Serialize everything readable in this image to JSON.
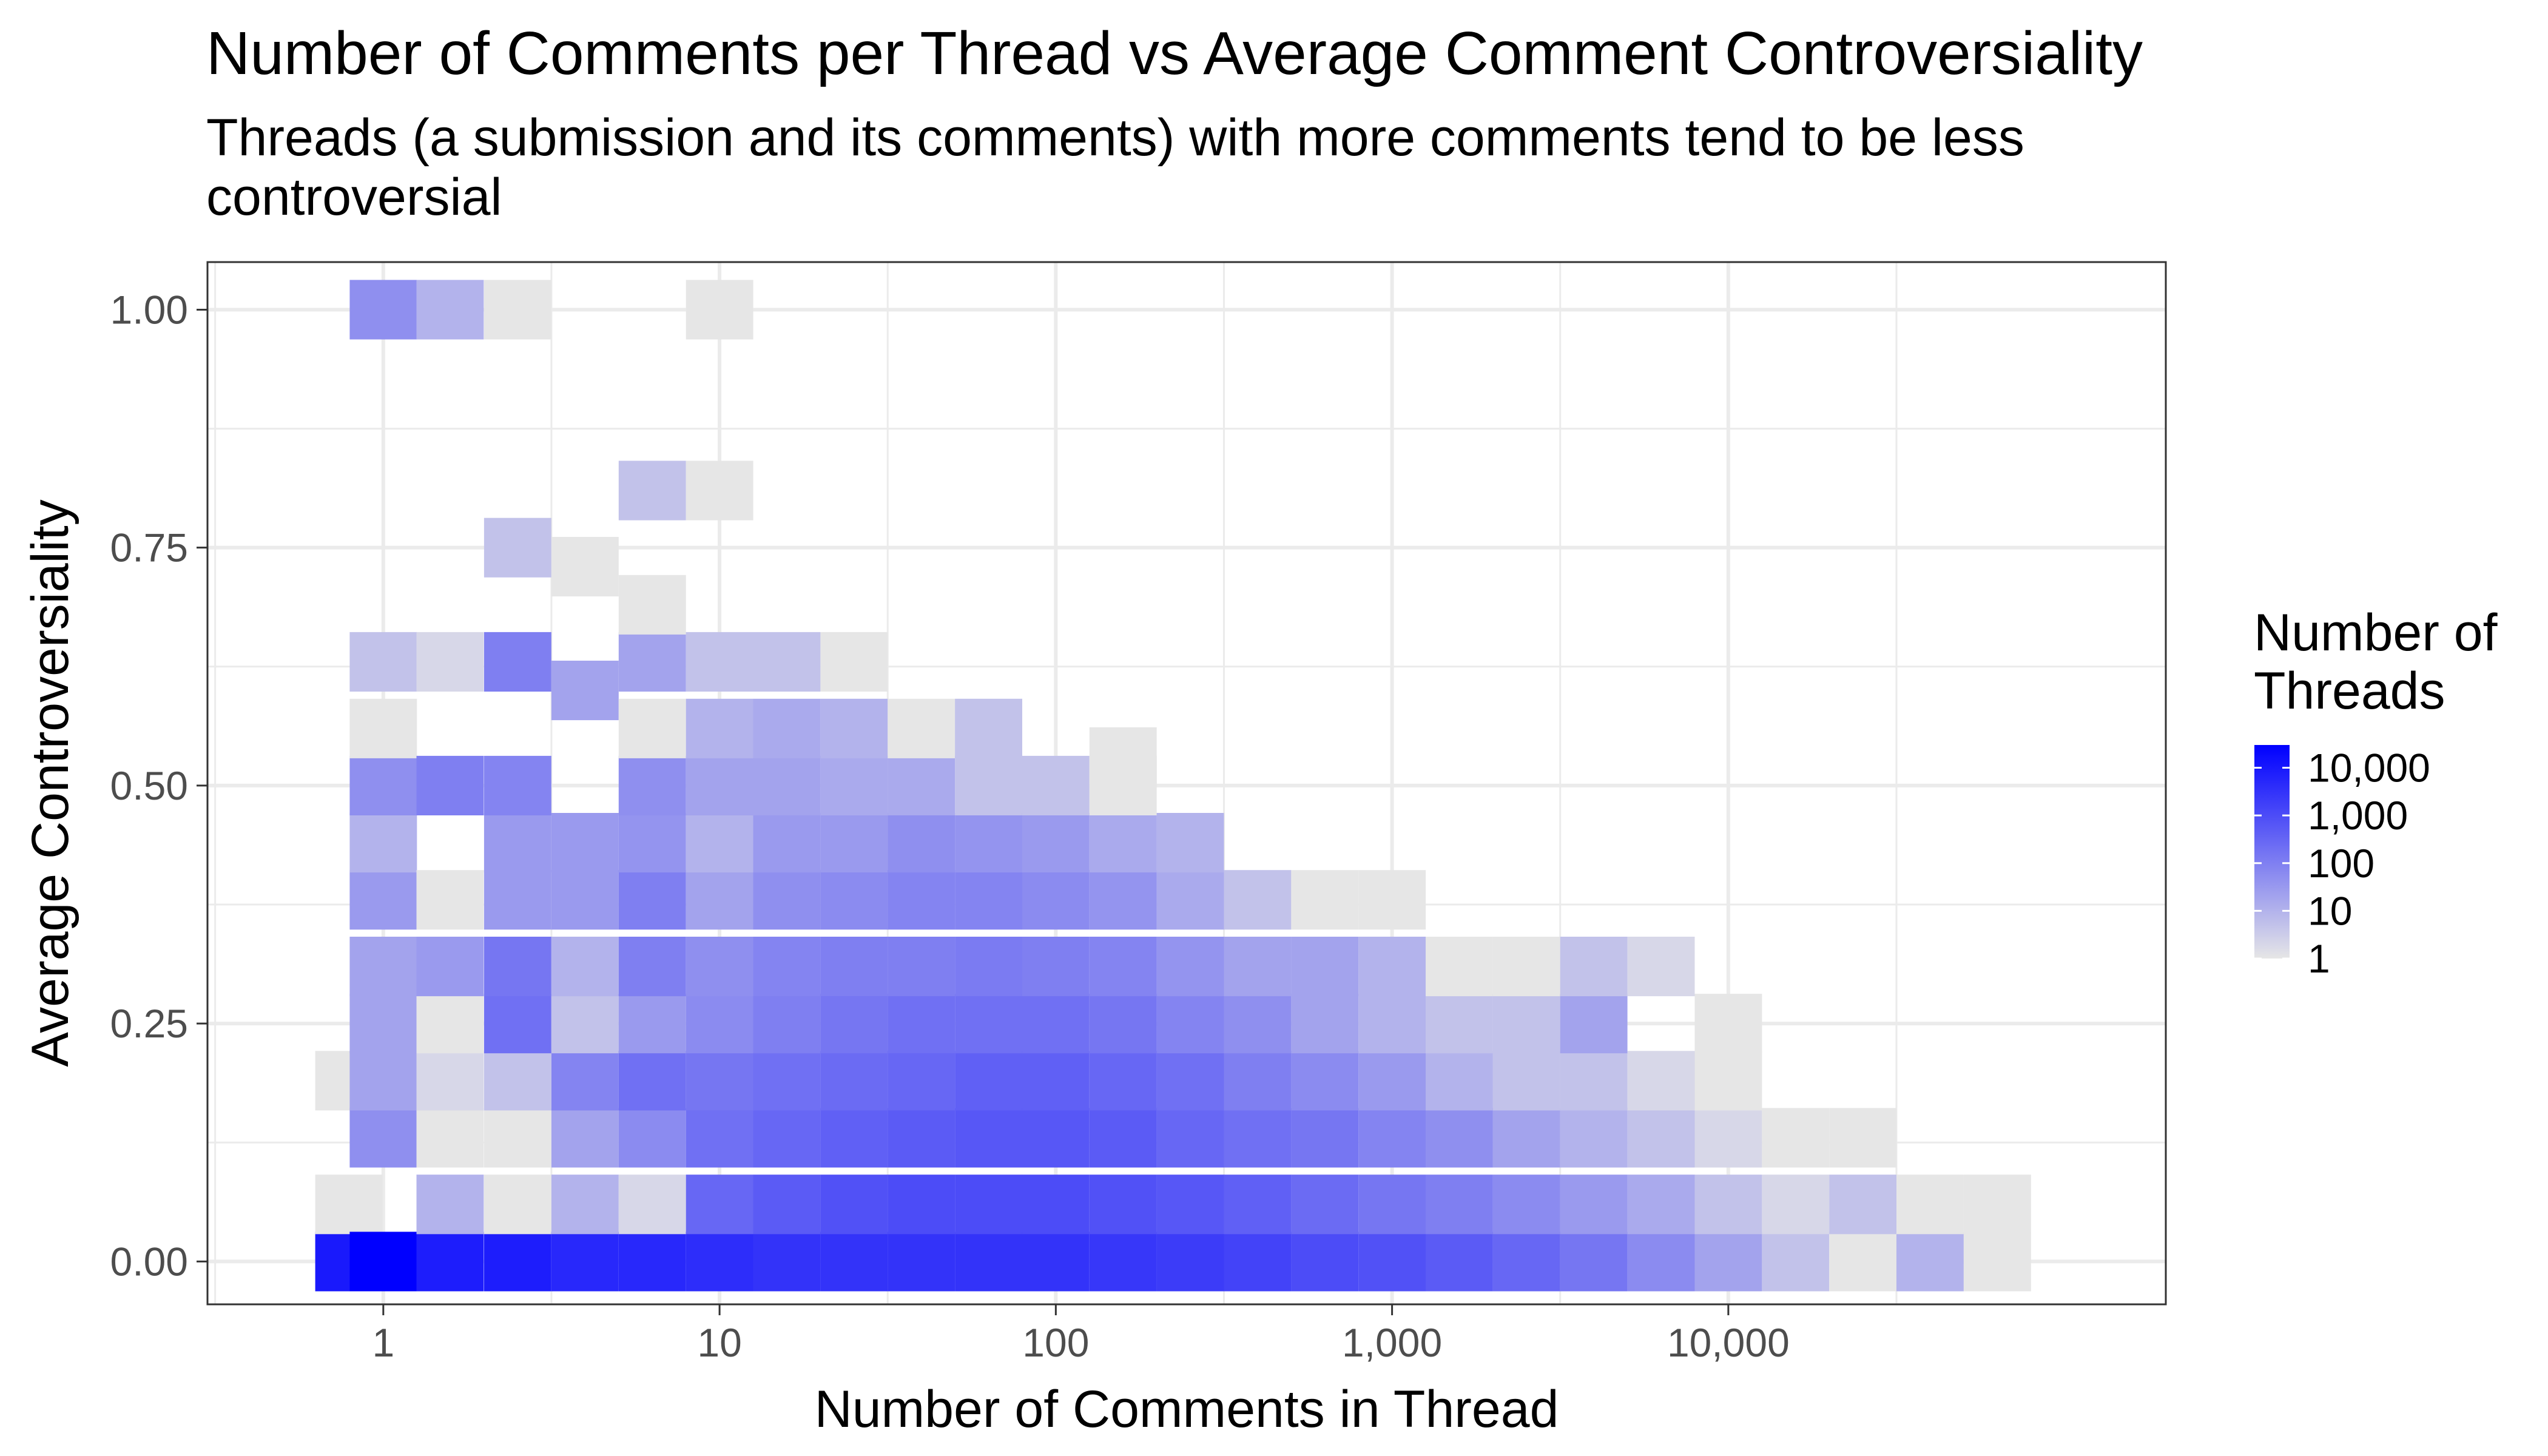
{
  "chart_data": {
    "type": "heatmap",
    "title": "Number of Comments per Thread vs Average Comment Controversiality",
    "subtitle_lines": [
      "Threads (a submission and its comments) with more comments tend to be less",
      "controversial"
    ],
    "xlabel": "Number of Comments in Thread",
    "ylabel": "Average Controversiality",
    "x_scale": "log10",
    "xlim": [
      0.3,
      200000
    ],
    "ylim": [
      -0.045,
      1.05
    ],
    "x_ticks": [
      1,
      10,
      100,
      1000,
      10000
    ],
    "x_tick_labels": [
      "1",
      "10",
      "100",
      "1,000",
      "10,000"
    ],
    "y_ticks": [
      0,
      0.25,
      0.5,
      0.75,
      1
    ],
    "y_tick_labels": [
      "0.00",
      "0.25",
      "0.50",
      "0.75",
      "1.00"
    ],
    "grid": true,
    "legend": {
      "title_lines": [
        "Number of",
        "Threads"
      ],
      "position": "right",
      "scale": "log10",
      "low_color": "#e6e6e6",
      "high_color": "#0000ff",
      "labels": [
        "10,000",
        "1,000",
        "100",
        "10",
        "1"
      ],
      "label_values": [
        10000,
        1000,
        100,
        10,
        1
      ],
      "max_count": 30000
    },
    "bin_width_log10": 0.2,
    "bin_height": 0.0625,
    "columns": [
      {
        "x_center": 0.79,
        "cells": [
          [
            0.0,
            10000
          ],
          [
            0.06,
            1
          ],
          [
            0.19,
            1
          ]
        ]
      },
      {
        "x_center": 1.0,
        "cells": [
          [
            0.0,
            30000
          ],
          [
            0.13,
            50
          ],
          [
            0.19,
            20
          ],
          [
            0.25,
            20
          ],
          [
            0.31,
            20
          ],
          [
            0.38,
            30
          ],
          [
            0.44,
            10
          ],
          [
            0.5,
            50
          ],
          [
            0.56,
            1
          ],
          [
            0.63,
            5
          ],
          [
            1.0,
            50
          ]
        ]
      },
      {
        "x_center": 1.58,
        "cells": [
          [
            0.0,
            8000
          ],
          [
            0.06,
            10
          ],
          [
            0.13,
            1
          ],
          [
            0.19,
            2
          ],
          [
            0.25,
            1
          ],
          [
            0.31,
            30
          ],
          [
            0.38,
            1
          ],
          [
            0.5,
            100
          ],
          [
            0.63,
            2
          ],
          [
            1.0,
            10
          ]
        ]
      },
      {
        "x_center": 2.51,
        "cells": [
          [
            0.0,
            8000
          ],
          [
            0.06,
            1
          ],
          [
            0.13,
            1
          ],
          [
            0.19,
            5
          ],
          [
            0.25,
            200
          ],
          [
            0.31,
            150
          ],
          [
            0.38,
            30
          ],
          [
            0.44,
            30
          ],
          [
            0.5,
            80
          ],
          [
            0.63,
            100
          ],
          [
            0.75,
            5
          ],
          [
            1.0,
            1
          ]
        ]
      },
      {
        "x_center": 3.98,
        "cells": [
          [
            0.0,
            5000
          ],
          [
            0.06,
            10
          ],
          [
            0.13,
            20
          ],
          [
            0.19,
            80
          ],
          [
            0.25,
            5
          ],
          [
            0.31,
            10
          ],
          [
            0.38,
            30
          ],
          [
            0.44,
            30
          ],
          [
            0.6,
            20
          ],
          [
            0.73,
            1
          ]
        ]
      },
      {
        "x_center": 6.31,
        "cells": [
          [
            0.0,
            5000
          ],
          [
            0.06,
            2
          ],
          [
            0.13,
            60
          ],
          [
            0.19,
            200
          ],
          [
            0.25,
            30
          ],
          [
            0.31,
            100
          ],
          [
            0.38,
            100
          ],
          [
            0.44,
            40
          ],
          [
            0.5,
            50
          ],
          [
            0.56,
            1
          ],
          [
            0.63,
            20
          ],
          [
            0.69,
            1
          ],
          [
            0.81,
            5
          ]
        ]
      },
      {
        "x_center": 10.0,
        "cells": [
          [
            0.0,
            4000
          ],
          [
            0.06,
            300
          ],
          [
            0.13,
            200
          ],
          [
            0.19,
            150
          ],
          [
            0.25,
            60
          ],
          [
            0.31,
            50
          ],
          [
            0.38,
            20
          ],
          [
            0.44,
            10
          ],
          [
            0.5,
            20
          ],
          [
            0.56,
            10
          ],
          [
            0.63,
            5
          ],
          [
            0.81,
            1
          ],
          [
            1.0,
            1
          ]
        ]
      },
      {
        "x_center": 15.85,
        "cells": [
          [
            0.0,
            3000
          ],
          [
            0.06,
            500
          ],
          [
            0.13,
            300
          ],
          [
            0.19,
            200
          ],
          [
            0.25,
            100
          ],
          [
            0.31,
            80
          ],
          [
            0.38,
            50
          ],
          [
            0.44,
            30
          ],
          [
            0.5,
            20
          ],
          [
            0.56,
            15
          ],
          [
            0.63,
            5
          ]
        ]
      },
      {
        "x_center": 25.12,
        "cells": [
          [
            0.0,
            3000
          ],
          [
            0.06,
            800
          ],
          [
            0.13,
            400
          ],
          [
            0.19,
            250
          ],
          [
            0.25,
            150
          ],
          [
            0.31,
            100
          ],
          [
            0.38,
            60
          ],
          [
            0.44,
            30
          ],
          [
            0.5,
            15
          ],
          [
            0.56,
            10
          ],
          [
            0.63,
            1
          ]
        ]
      },
      {
        "x_center": 39.81,
        "cells": [
          [
            0.0,
            3000
          ],
          [
            0.06,
            1000
          ],
          [
            0.13,
            500
          ],
          [
            0.19,
            300
          ],
          [
            0.25,
            200
          ],
          [
            0.31,
            100
          ],
          [
            0.38,
            80
          ],
          [
            0.44,
            50
          ],
          [
            0.5,
            15
          ],
          [
            0.56,
            1
          ]
        ]
      },
      {
        "x_center": 63.1,
        "cells": [
          [
            0.0,
            3000
          ],
          [
            0.06,
            1000
          ],
          [
            0.13,
            600
          ],
          [
            0.19,
            400
          ],
          [
            0.25,
            200
          ],
          [
            0.31,
            120
          ],
          [
            0.38,
            80
          ],
          [
            0.44,
            40
          ],
          [
            0.5,
            5
          ],
          [
            0.56,
            5
          ]
        ]
      },
      {
        "x_center": 100.0,
        "cells": [
          [
            0.0,
            3000
          ],
          [
            0.06,
            1000
          ],
          [
            0.13,
            600
          ],
          [
            0.19,
            400
          ],
          [
            0.25,
            200
          ],
          [
            0.31,
            100
          ],
          [
            0.38,
            60
          ],
          [
            0.44,
            30
          ],
          [
            0.5,
            5
          ]
        ]
      },
      {
        "x_center": 158.49,
        "cells": [
          [
            0.0,
            2500
          ],
          [
            0.06,
            800
          ],
          [
            0.13,
            500
          ],
          [
            0.19,
            300
          ],
          [
            0.25,
            150
          ],
          [
            0.31,
            80
          ],
          [
            0.38,
            40
          ],
          [
            0.44,
            15
          ],
          [
            0.5,
            1
          ],
          [
            0.53,
            1
          ]
        ]
      },
      {
        "x_center": 251.19,
        "cells": [
          [
            0.0,
            2000
          ],
          [
            0.06,
            600
          ],
          [
            0.13,
            300
          ],
          [
            0.19,
            200
          ],
          [
            0.25,
            80
          ],
          [
            0.31,
            40
          ],
          [
            0.38,
            15
          ],
          [
            0.44,
            10
          ]
        ]
      },
      {
        "x_center": 398.11,
        "cells": [
          [
            0.0,
            1500
          ],
          [
            0.06,
            400
          ],
          [
            0.13,
            200
          ],
          [
            0.19,
            100
          ],
          [
            0.25,
            50
          ],
          [
            0.31,
            20
          ],
          [
            0.38,
            5
          ]
        ]
      },
      {
        "x_center": 630.96,
        "cells": [
          [
            0.0,
            1000
          ],
          [
            0.06,
            250
          ],
          [
            0.13,
            150
          ],
          [
            0.19,
            60
          ],
          [
            0.25,
            20
          ],
          [
            0.31,
            20
          ],
          [
            0.38,
            1
          ]
        ]
      },
      {
        "x_center": 1000.0,
        "cells": [
          [
            0.0,
            800
          ],
          [
            0.06,
            150
          ],
          [
            0.13,
            80
          ],
          [
            0.19,
            30
          ],
          [
            0.25,
            10
          ],
          [
            0.31,
            10
          ],
          [
            0.38,
            1
          ]
        ]
      },
      {
        "x_center": 1584.89,
        "cells": [
          [
            0.0,
            500
          ],
          [
            0.06,
            100
          ],
          [
            0.13,
            50
          ],
          [
            0.19,
            10
          ],
          [
            0.25,
            5
          ],
          [
            0.31,
            1
          ]
        ]
      },
      {
        "x_center": 2511.89,
        "cells": [
          [
            0.0,
            300
          ],
          [
            0.06,
            60
          ],
          [
            0.13,
            20
          ],
          [
            0.19,
            5
          ],
          [
            0.25,
            5
          ],
          [
            0.31,
            1
          ]
        ]
      },
      {
        "x_center": 3981.07,
        "cells": [
          [
            0.0,
            150
          ],
          [
            0.06,
            30
          ],
          [
            0.13,
            10
          ],
          [
            0.19,
            5
          ],
          [
            0.25,
            20
          ],
          [
            0.31,
            5
          ]
        ]
      },
      {
        "x_center": 6309.57,
        "cells": [
          [
            0.0,
            60
          ],
          [
            0.06,
            15
          ],
          [
            0.13,
            5
          ],
          [
            0.19,
            2
          ],
          [
            0.31,
            2
          ]
        ]
      },
      {
        "x_center": 10000.0,
        "cells": [
          [
            0.0,
            20
          ],
          [
            0.06,
            5
          ],
          [
            0.13,
            2
          ],
          [
            0.19,
            1
          ],
          [
            0.25,
            1
          ]
        ]
      },
      {
        "x_center": 15848.93,
        "cells": [
          [
            0.0,
            5
          ],
          [
            0.06,
            2
          ],
          [
            0.13,
            1
          ]
        ]
      },
      {
        "x_center": 25118.86,
        "cells": [
          [
            0.0,
            1
          ],
          [
            0.06,
            5
          ],
          [
            0.13,
            1
          ]
        ]
      },
      {
        "x_center": 39810.72,
        "cells": [
          [
            0.0,
            10
          ],
          [
            0.06,
            1
          ]
        ]
      },
      {
        "x_center": 63095.73,
        "cells": [
          [
            0.0,
            1
          ],
          [
            0.06,
            1
          ]
        ]
      }
    ]
  }
}
